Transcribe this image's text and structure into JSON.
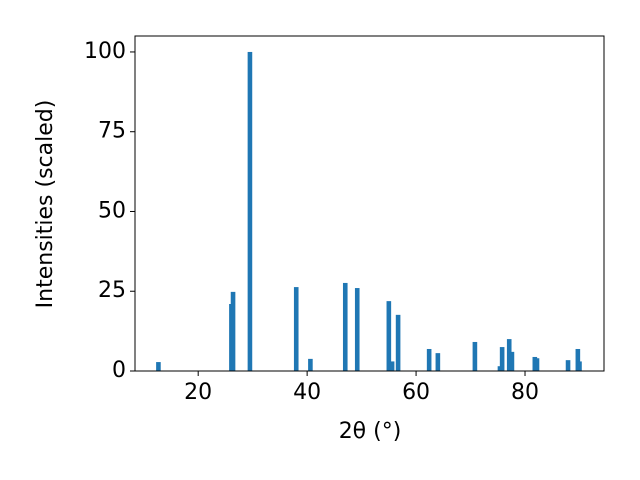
{
  "chart_data": {
    "type": "bar",
    "x_label": "2θ (°)",
    "y_label": "Intensities (scaled)",
    "x": [
      12.7,
      26.1,
      26.4,
      29.5,
      38.0,
      40.6,
      47.0,
      49.2,
      55.0,
      55.6,
      56.7,
      62.4,
      64.0,
      70.8,
      75.4,
      75.8,
      77.1,
      77.6,
      81.8,
      82.2,
      87.9,
      89.7,
      90.0
    ],
    "values": [
      2.8,
      21,
      24.8,
      100,
      26.3,
      3.8,
      27.6,
      26.0,
      21.9,
      3,
      17.6,
      6.9,
      5.6,
      9.1,
      1.5,
      7.5,
      10.0,
      6,
      4.4,
      4,
      3.4,
      6.9,
      3
    ],
    "color": "#1f77b4",
    "xlim": [
      8.4,
      94.5
    ],
    "ylim": [
      0,
      105
    ],
    "xticks": [
      20,
      40,
      60,
      80
    ],
    "yticks": [
      0,
      25,
      50,
      75,
      100
    ]
  }
}
